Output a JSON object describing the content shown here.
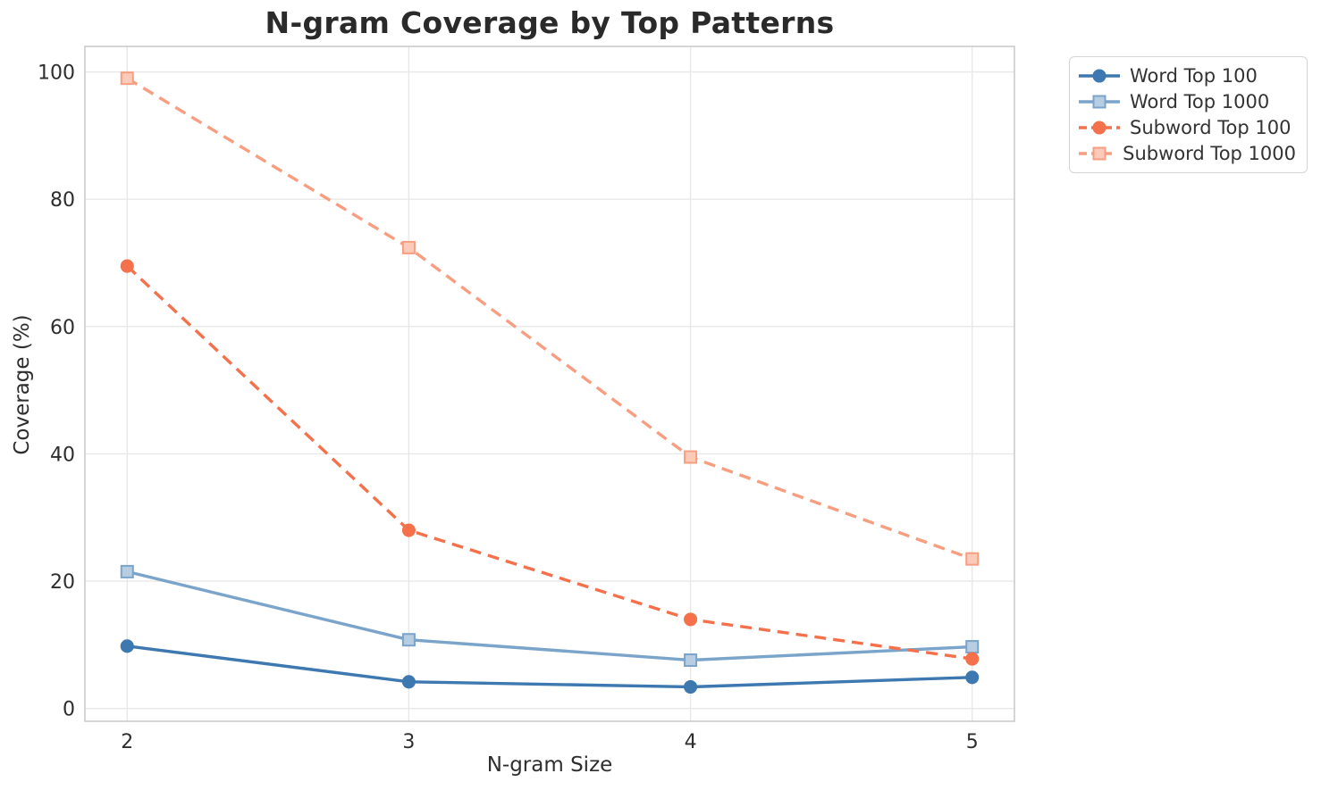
{
  "chart_data": {
    "type": "line",
    "title": "N-gram Coverage by Top Patterns",
    "xlabel": "N-gram Size",
    "ylabel": "Coverage (%)",
    "x": [
      2,
      3,
      4,
      5
    ],
    "x_tick_labels": [
      "2",
      "3",
      "4",
      "5"
    ],
    "y_ticks": [
      0,
      20,
      40,
      60,
      80,
      100
    ],
    "y_tick_labels": [
      "0",
      "20",
      "40",
      "60",
      "80",
      "100"
    ],
    "xlim": [
      1.85,
      5.15
    ],
    "ylim": [
      -2,
      104
    ],
    "grid": true,
    "legend_position": "outside upper right",
    "series": [
      {
        "name": "Word Top 100",
        "color": "#3D79B0",
        "marker": "circle",
        "line_style": "solid",
        "values": [
          9.8,
          4.2,
          3.4,
          4.9
        ]
      },
      {
        "name": "Word Top 1000",
        "color": "#7BA4CB",
        "marker": "square",
        "line_style": "solid",
        "values": [
          21.5,
          10.8,
          7.6,
          9.7
        ]
      },
      {
        "name": "Subword Top 100",
        "color": "#F4714B",
        "marker": "circle",
        "line_style": "dashed",
        "values": [
          69.5,
          28.0,
          14.0,
          7.8
        ]
      },
      {
        "name": "Subword Top 1000",
        "color": "#F89E80",
        "marker": "square",
        "line_style": "dashed",
        "values": [
          99.0,
          72.4,
          39.5,
          23.5
        ]
      }
    ]
  },
  "colors": {
    "background": "#FFFFFF",
    "grid": "#E8E8E8",
    "spine": "#CBCBCB",
    "tick_text": "#2E2E2E",
    "title_text": "#2A2A2A",
    "legend_border": "#D4D4D4",
    "legend_text": "#333333"
  }
}
